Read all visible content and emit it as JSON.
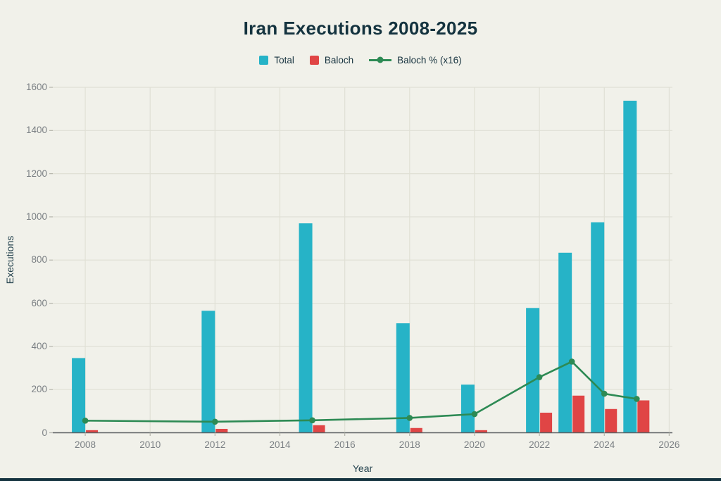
{
  "title": "Iran Executions 2008-2025",
  "axes": {
    "xlabel": "Year",
    "ylabel": "Executions"
  },
  "legend": [
    {
      "label": "Total",
      "marker": "square",
      "color": "#26b3c7"
    },
    {
      "label": "Baloch",
      "marker": "square",
      "color": "#e04545"
    },
    {
      "label": "Baloch % (x16)",
      "marker": "line",
      "color": "#2d8a54"
    }
  ],
  "colors": {
    "background": "#f1f1ea",
    "title_text": "#14333f",
    "total_bar": "#26b3c7",
    "baloch_bar": "#e04545",
    "pct_line": "#2d8a54",
    "gridline": "#e0e0d5",
    "axis_line": "#5c6063",
    "tick_text": "#7b8084",
    "accent_strip": "#14333f"
  },
  "chart_data": {
    "type": "bar",
    "title": "Iran Executions 2008-2025",
    "xlabel": "Year",
    "ylabel": "Executions",
    "x": [
      2008,
      2012,
      2015,
      2018,
      2020,
      2022,
      2023,
      2024,
      2025
    ],
    "series": [
      {
        "name": "Total",
        "type": "bar",
        "color": "#26b3c7",
        "values": [
          346,
          565,
          970,
          507,
          223,
          578,
          834,
          975,
          1538
        ]
      },
      {
        "name": "Baloch",
        "type": "bar",
        "color": "#e04545",
        "values": [
          12,
          18,
          35,
          22,
          12,
          93,
          172,
          110,
          150
        ]
      },
      {
        "name": "Baloch % (x16)",
        "type": "line",
        "color": "#2d8a54",
        "pct_values": [
          3.5,
          3.2,
          3.6,
          4.3,
          5.4,
          16.1,
          20.6,
          11.3,
          9.8
        ],
        "plot_multiplier": 16
      }
    ],
    "xticks": [
      2008,
      2010,
      2012,
      2014,
      2016,
      2018,
      2020,
      2022,
      2024,
      2026
    ],
    "yticks": [
      0,
      200,
      400,
      600,
      800,
      1000,
      1200,
      1400,
      1600
    ],
    "xlim": [
      2007,
      2026.1
    ],
    "ylim": [
      0,
      1600
    ],
    "grid": true,
    "legend_position": "top-center"
  }
}
